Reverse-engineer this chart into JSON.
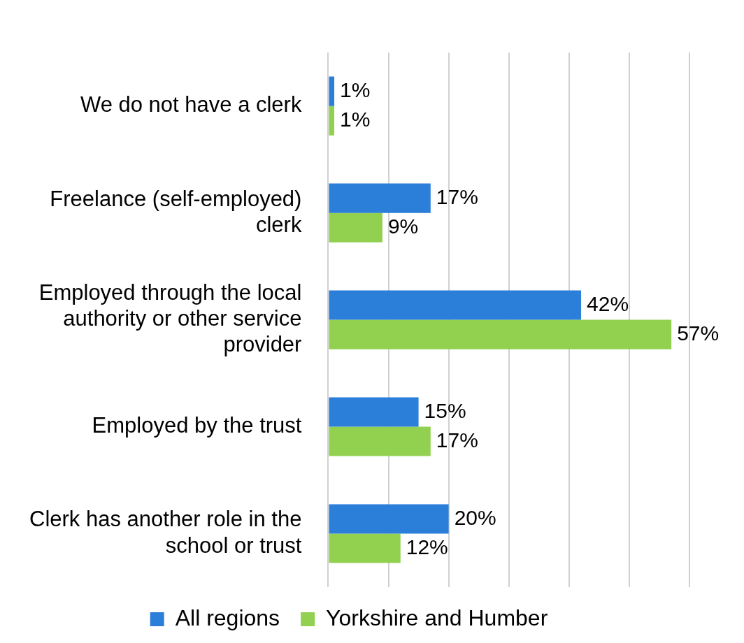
{
  "chart_data": {
    "type": "bar",
    "orientation": "horizontal",
    "categories": [
      "We do not have a clerk",
      "Freelance (self-employed) clerk",
      "Employed through the local authority or other service provider",
      "Employed by the trust",
      "Clerk has another role in the school or trust"
    ],
    "series": [
      {
        "name": "All regions",
        "color": "#2b7fd9",
        "values": [
          1,
          17,
          42,
          15,
          20
        ],
        "value_labels": [
          "1%",
          "17%",
          "42%",
          "15%",
          "20%"
        ]
      },
      {
        "name": "Yorkshire and Humber",
        "color": "#92d050",
        "values": [
          1,
          9,
          57,
          17,
          12
        ],
        "value_labels": [
          "1%",
          "9%",
          "57%",
          "17%",
          "12%"
        ]
      }
    ],
    "xlim": [
      0,
      60
    ],
    "xticks": [
      {
        "value": 0,
        "label": null
      },
      {
        "value": 10,
        "label": null
      },
      {
        "value": 20,
        "label": null
      },
      {
        "value": 30,
        "label": null
      },
      {
        "value": 40,
        "label": null
      },
      {
        "value": 50,
        "label": null
      },
      {
        "value": 60,
        "label": null
      }
    ],
    "tick_labels": "y",
    "grid": "x",
    "legend": "bottom"
  }
}
